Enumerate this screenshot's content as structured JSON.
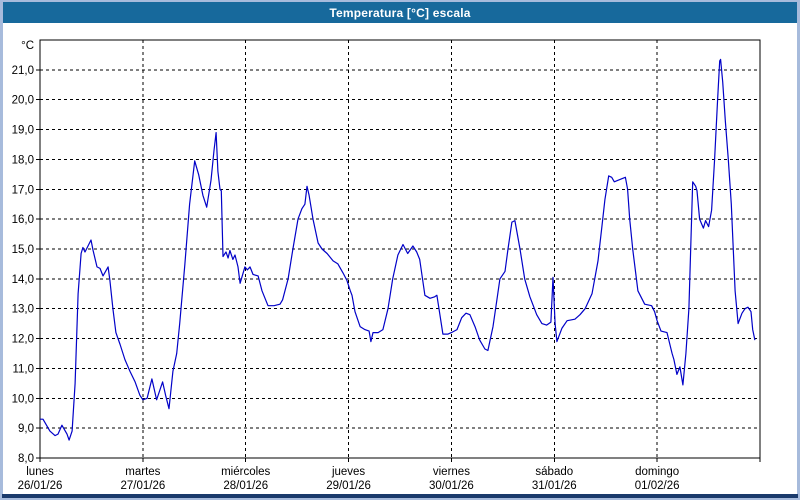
{
  "window": {
    "title": "Temperatura [°C] escala"
  },
  "colors": {
    "titlebar_bg": "#17699C",
    "titlebar_text": "#FFFFFF",
    "frame_side": "#A7BBDC",
    "frame_bottom": "#1A3A6B",
    "plot_bg": "#FFFFFF",
    "plot_border": "#000000",
    "grid": "#000000",
    "line": "#0202C8",
    "label_text": "#000000"
  },
  "y_axis": {
    "unit": "°C",
    "tick_labels": [
      "21,0",
      "20,0",
      "19,0",
      "18,0",
      "17,0",
      "16,0",
      "15,0",
      "14,0",
      "13,0",
      "12,0",
      "11,0",
      "10,0",
      "9,0",
      "8,0"
    ],
    "tick_values": [
      21,
      20,
      19,
      18,
      17,
      16,
      15,
      14,
      13,
      12,
      11,
      10,
      9,
      8
    ]
  },
  "x_axis": {
    "days": [
      {
        "name": "lunes",
        "date": "26/01/26"
      },
      {
        "name": "martes",
        "date": "27/01/26"
      },
      {
        "name": "miércoles",
        "date": "28/01/26"
      },
      {
        "name": "jueves",
        "date": "29/01/26"
      },
      {
        "name": "viernes",
        "date": "30/01/26"
      },
      {
        "name": "sábado",
        "date": "31/01/26"
      },
      {
        "name": "domingo",
        "date": "01/02/26"
      }
    ]
  },
  "chart_data": {
    "type": "line",
    "title": "Temperatura [°C] escala",
    "xlabel": "",
    "ylabel": "°C",
    "ylim": [
      8.0,
      22.0
    ],
    "xlim_hours": [
      0,
      168
    ],
    "grid": true,
    "grid_style": "dashed",
    "legend_position": "none",
    "series_name": "Temperatura",
    "x_unit": "hours from lunes 26/01/26 00:00",
    "points": [
      [
        0.0,
        9.3
      ],
      [
        0.7,
        9.3
      ],
      [
        2.3,
        8.9
      ],
      [
        3.5,
        8.75
      ],
      [
        4.2,
        8.8
      ],
      [
        5.1,
        9.1
      ],
      [
        6.3,
        8.8
      ],
      [
        6.8,
        8.6
      ],
      [
        7.5,
        8.9
      ],
      [
        8.2,
        10.5
      ],
      [
        8.9,
        13.5
      ],
      [
        9.6,
        14.85
      ],
      [
        10.0,
        15.05
      ],
      [
        10.5,
        14.9
      ],
      [
        11.2,
        15.1
      ],
      [
        11.9,
        15.3
      ],
      [
        12.4,
        14.95
      ],
      [
        13.3,
        14.4
      ],
      [
        14.0,
        14.35
      ],
      [
        14.7,
        14.1
      ],
      [
        15.9,
        14.4
      ],
      [
        16.3,
        13.95
      ],
      [
        17.0,
        13.0
      ],
      [
        17.7,
        12.2
      ],
      [
        18.7,
        11.8
      ],
      [
        19.8,
        11.3
      ],
      [
        21.0,
        10.9
      ],
      [
        22.2,
        10.55
      ],
      [
        23.3,
        10.1
      ],
      [
        24.0,
        9.95
      ],
      [
        25.0,
        10.0
      ],
      [
        26.1,
        10.65
      ],
      [
        27.2,
        9.95
      ],
      [
        28.6,
        10.55
      ],
      [
        29.3,
        10.1
      ],
      [
        30.1,
        9.65
      ],
      [
        31.0,
        10.9
      ],
      [
        31.9,
        11.5
      ],
      [
        32.6,
        12.5
      ],
      [
        33.8,
        14.5
      ],
      [
        34.9,
        16.5
      ],
      [
        36.1,
        17.95
      ],
      [
        37.0,
        17.5
      ],
      [
        38.0,
        16.8
      ],
      [
        38.9,
        16.4
      ],
      [
        39.9,
        17.3
      ],
      [
        40.6,
        18.3
      ],
      [
        41.1,
        18.9
      ],
      [
        41.5,
        17.6
      ],
      [
        42.0,
        17.0
      ],
      [
        42.3,
        16.95
      ],
      [
        42.7,
        14.75
      ],
      [
        43.4,
        14.9
      ],
      [
        43.9,
        14.7
      ],
      [
        44.3,
        14.95
      ],
      [
        45.0,
        14.65
      ],
      [
        45.5,
        14.8
      ],
      [
        46.2,
        14.4
      ],
      [
        46.7,
        13.85
      ],
      [
        47.8,
        14.4
      ],
      [
        48.4,
        14.3
      ],
      [
        49.0,
        14.4
      ],
      [
        49.7,
        14.15
      ],
      [
        50.9,
        14.1
      ],
      [
        51.8,
        13.6
      ],
      [
        53.2,
        13.1
      ],
      [
        54.6,
        13.1
      ],
      [
        56.0,
        13.15
      ],
      [
        56.6,
        13.3
      ],
      [
        57.9,
        14.0
      ],
      [
        59.0,
        15.0
      ],
      [
        60.2,
        16.0
      ],
      [
        61.1,
        16.35
      ],
      [
        61.8,
        16.5
      ],
      [
        62.3,
        17.1
      ],
      [
        62.8,
        16.8
      ],
      [
        63.7,
        16.0
      ],
      [
        64.9,
        15.2
      ],
      [
        65.8,
        15.0
      ],
      [
        67.0,
        14.85
      ],
      [
        68.4,
        14.6
      ],
      [
        69.5,
        14.5
      ],
      [
        70.7,
        14.2
      ],
      [
        71.6,
        13.95
      ],
      [
        72.4,
        13.6
      ],
      [
        72.8,
        13.45
      ],
      [
        73.5,
        12.9
      ],
      [
        74.7,
        12.4
      ],
      [
        75.8,
        12.3
      ],
      [
        76.8,
        12.25
      ],
      [
        77.2,
        11.9
      ],
      [
        77.7,
        12.2
      ],
      [
        78.9,
        12.2
      ],
      [
        80.0,
        12.3
      ],
      [
        81.2,
        13.0
      ],
      [
        82.3,
        14.0
      ],
      [
        83.5,
        14.8
      ],
      [
        84.7,
        15.15
      ],
      [
        85.8,
        14.85
      ],
      [
        87.0,
        15.1
      ],
      [
        87.9,
        14.9
      ],
      [
        88.6,
        14.65
      ],
      [
        89.8,
        13.45
      ],
      [
        91.0,
        13.35
      ],
      [
        92.1,
        13.4
      ],
      [
        92.6,
        13.45
      ],
      [
        93.3,
        12.8
      ],
      [
        94.0,
        12.15
      ],
      [
        95.2,
        12.15
      ],
      [
        96.0,
        12.2
      ],
      [
        97.3,
        12.3
      ],
      [
        98.4,
        12.7
      ],
      [
        99.4,
        12.85
      ],
      [
        100.3,
        12.8
      ],
      [
        101.5,
        12.4
      ],
      [
        102.6,
        11.95
      ],
      [
        103.8,
        11.65
      ],
      [
        104.5,
        11.6
      ],
      [
        105.7,
        12.4
      ],
      [
        106.6,
        13.3
      ],
      [
        107.3,
        14.0
      ],
      [
        108.5,
        14.25
      ],
      [
        109.2,
        15.0
      ],
      [
        110.1,
        15.9
      ],
      [
        110.8,
        15.95
      ],
      [
        112.0,
        15.0
      ],
      [
        113.1,
        14.0
      ],
      [
        114.3,
        13.4
      ],
      [
        115.9,
        12.8
      ],
      [
        117.1,
        12.5
      ],
      [
        118.2,
        12.45
      ],
      [
        119.2,
        12.55
      ],
      [
        119.7,
        14.05
      ],
      [
        120.2,
        12.5
      ],
      [
        120.6,
        11.9
      ],
      [
        121.8,
        12.35
      ],
      [
        123.0,
        12.6
      ],
      [
        124.8,
        12.65
      ],
      [
        126.0,
        12.8
      ],
      [
        127.2,
        13.0
      ],
      [
        128.8,
        13.5
      ],
      [
        130.2,
        14.6
      ],
      [
        131.1,
        15.75
      ],
      [
        131.8,
        16.65
      ],
      [
        132.7,
        17.45
      ],
      [
        133.4,
        17.4
      ],
      [
        134.0,
        17.25
      ],
      [
        135.7,
        17.35
      ],
      [
        136.6,
        17.4
      ],
      [
        137.1,
        17.0
      ],
      [
        137.6,
        16.0
      ],
      [
        138.3,
        15.0
      ],
      [
        139.5,
        13.6
      ],
      [
        141.1,
        13.15
      ],
      [
        142.7,
        13.1
      ],
      [
        143.4,
        12.9
      ],
      [
        144.0,
        12.6
      ],
      [
        144.9,
        12.25
      ],
      [
        146.3,
        12.2
      ],
      [
        147.5,
        11.5
      ],
      [
        147.9,
        11.3
      ],
      [
        148.6,
        10.8
      ],
      [
        149.3,
        11.05
      ],
      [
        150.0,
        10.45
      ],
      [
        150.7,
        11.5
      ],
      [
        151.4,
        13.0
      ],
      [
        152.3,
        17.25
      ],
      [
        153.0,
        17.1
      ],
      [
        153.3,
        16.95
      ],
      [
        153.9,
        16.0
      ],
      [
        154.8,
        15.7
      ],
      [
        155.3,
        15.95
      ],
      [
        156.0,
        15.75
      ],
      [
        156.7,
        16.3
      ],
      [
        157.4,
        18.0
      ],
      [
        158.1,
        20.0
      ],
      [
        158.6,
        21.3
      ],
      [
        158.8,
        21.35
      ],
      [
        159.3,
        20.6
      ],
      [
        159.9,
        19.3
      ],
      [
        160.6,
        18.0
      ],
      [
        161.3,
        16.5
      ],
      [
        161.7,
        15.2
      ],
      [
        162.2,
        13.6
      ],
      [
        162.9,
        12.5
      ],
      [
        163.8,
        12.85
      ],
      [
        164.5,
        13.0
      ],
      [
        165.2,
        13.05
      ],
      [
        165.9,
        12.9
      ],
      [
        166.3,
        12.3
      ],
      [
        166.8,
        11.95
      ]
    ]
  }
}
